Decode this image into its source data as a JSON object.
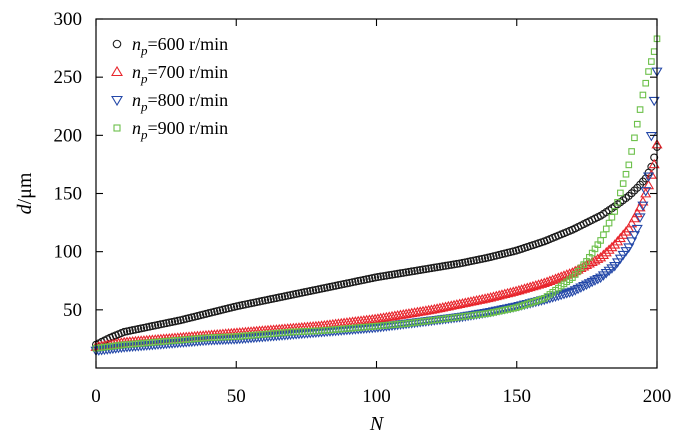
{
  "chart_data": {
    "type": "scatter",
    "xlabel": "N",
    "ylabel_var": "d",
    "ylabel_unit": "/μm",
    "xlim": [
      0,
      200
    ],
    "ylim": [
      0,
      300
    ],
    "xticks": [
      0,
      50,
      100,
      150,
      200
    ],
    "yticks": [
      50,
      100,
      150,
      200,
      250,
      300
    ],
    "legend_position": "top-left",
    "series": [
      {
        "name": "n_p=600 r/min",
        "legend_var": "n",
        "legend_sub": "p",
        "legend_text": "=600 r/min",
        "marker": "circle",
        "color": "#1a1a1a",
        "x": [
          0,
          5,
          10,
          20,
          30,
          40,
          50,
          60,
          70,
          80,
          90,
          100,
          110,
          120,
          130,
          140,
          150,
          160,
          170,
          180,
          185,
          190,
          193,
          196,
          198,
          199,
          200
        ],
        "values": [
          20,
          26,
          31,
          36,
          41,
          47,
          53,
          58,
          63,
          68,
          73,
          78,
          82,
          86,
          90,
          95,
          101,
          109,
          119,
          131,
          139,
          148,
          155,
          163,
          173,
          181,
          190
        ]
      },
      {
        "name": "n_p=700 r/min",
        "legend_var": "n",
        "legend_sub": "p",
        "legend_text": "=700 r/min",
        "marker": "triangle-up",
        "color": "#e8262d",
        "x": [
          0,
          10,
          20,
          30,
          40,
          50,
          60,
          70,
          80,
          90,
          100,
          110,
          120,
          130,
          140,
          150,
          160,
          170,
          180,
          185,
          190,
          193,
          195,
          197,
          199,
          200
        ],
        "values": [
          18,
          22,
          24,
          26,
          28,
          30,
          32,
          34,
          36,
          39,
          42,
          46,
          50,
          55,
          60,
          66,
          73,
          82,
          95,
          106,
          120,
          133,
          143,
          157,
          175,
          192
        ]
      },
      {
        "name": "n_p=800 r/min",
        "legend_var": "n",
        "legend_sub": "p",
        "legend_text": "=800 r/min",
        "marker": "triangle-down",
        "color": "#2448a8",
        "x": [
          0,
          10,
          20,
          30,
          40,
          50,
          60,
          70,
          80,
          90,
          100,
          110,
          120,
          130,
          140,
          150,
          160,
          170,
          180,
          185,
          190,
          193,
          195,
          197,
          198,
          199,
          200
        ],
        "values": [
          15,
          18,
          20,
          22,
          24,
          25,
          27,
          29,
          31,
          33,
          35,
          38,
          41,
          44,
          48,
          53,
          59,
          66,
          78,
          88,
          104,
          120,
          140,
          165,
          200,
          230,
          255
        ]
      },
      {
        "name": "n_p=900 r/min",
        "legend_var": "n",
        "legend_sub": "p",
        "legend_text": "=900 r/min",
        "marker": "square",
        "color": "#6cc04a",
        "x": [
          0,
          10,
          20,
          30,
          40,
          50,
          60,
          70,
          80,
          90,
          100,
          110,
          120,
          130,
          140,
          150,
          160,
          170,
          175,
          180,
          185,
          190,
          193,
          195,
          197,
          199,
          200
        ],
        "values": [
          17,
          20,
          22,
          24,
          26,
          27,
          29,
          31,
          32,
          34,
          36,
          38,
          41,
          44,
          47,
          52,
          60,
          78,
          92,
          110,
          135,
          175,
          210,
          235,
          255,
          272,
          283
        ]
      }
    ]
  }
}
